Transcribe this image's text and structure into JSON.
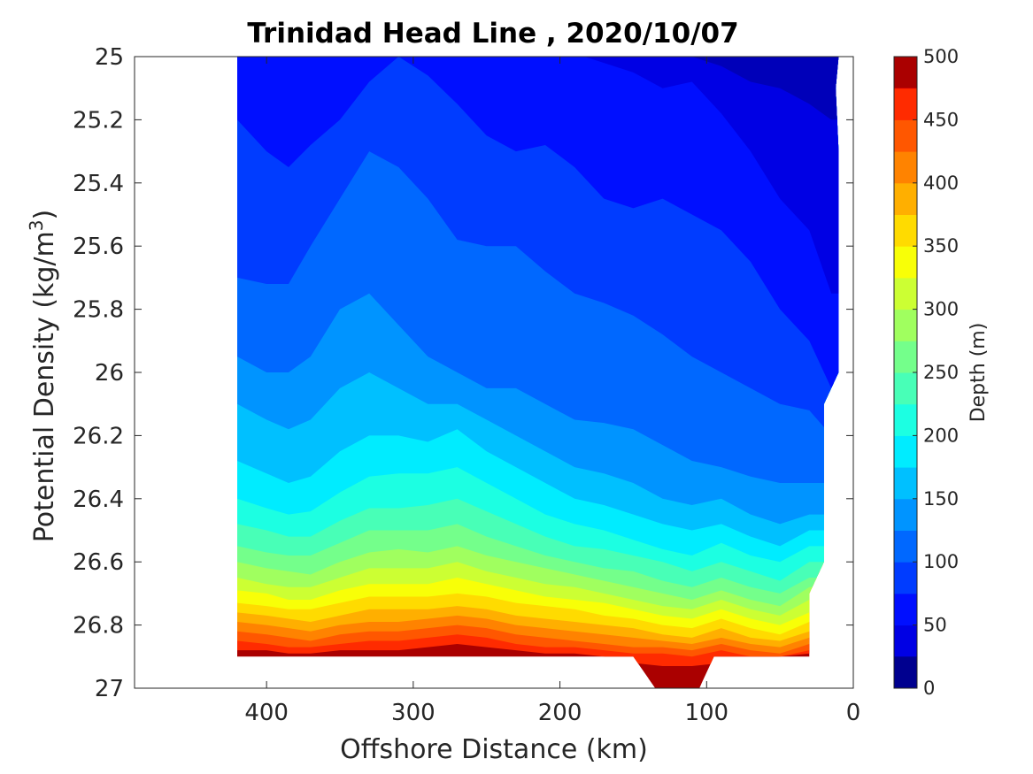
{
  "chart_data": {
    "type": "contour",
    "title": "Trinidad Head Line , 2020/10/07",
    "xlabel": "Offshore Distance (km)",
    "ylabel_main": "Potential Density (kg/m",
    "ylabel_sup": "3",
    "ylabel_close": ")",
    "xlim": [
      490,
      0
    ],
    "ylim": [
      25,
      27
    ],
    "y_reversed": true,
    "x_reversed": true,
    "x_ticks": [
      400,
      300,
      200,
      100,
      0
    ],
    "x_tick_labels": [
      "400",
      "300",
      "200",
      "100",
      "0"
    ],
    "y_ticks": [
      25,
      25.2,
      25.4,
      25.6,
      25.8,
      26,
      26.2,
      26.4,
      26.6,
      26.8,
      27
    ],
    "y_tick_labels": [
      "25",
      "25.2",
      "25.4",
      "25.6",
      "25.8",
      "26",
      "26.2",
      "26.4",
      "26.6",
      "26.8",
      "27"
    ],
    "colorbar": {
      "label": "Depth (m)",
      "range": [
        0,
        500
      ],
      "ticks": [
        0,
        50,
        100,
        150,
        200,
        250,
        300,
        350,
        400,
        450,
        500
      ],
      "tick_labels": [
        "0",
        "50",
        "100",
        "150",
        "200",
        "250",
        "300",
        "350",
        "400",
        "450",
        "500"
      ],
      "levels": [
        0,
        25,
        50,
        75,
        100,
        125,
        150,
        175,
        200,
        225,
        250,
        275,
        300,
        325,
        350,
        375,
        400,
        425,
        450,
        475,
        500
      ]
    },
    "level_colors": [
      "#00008f",
      "#0000b9",
      "#0000e4",
      "#000fff",
      "#003cff",
      "#0068ff",
      "#0094ff",
      "#00c0ff",
      "#00ecff",
      "#1cffe2",
      "#48ffb7",
      "#74ff8b",
      "#a0ff5f",
      "#ccff33",
      "#f8ff07",
      "#ffdb00",
      "#ffaf00",
      "#ff8300",
      "#ff5700",
      "#ff2b00",
      "#ff0000",
      "#d40000",
      "#aa0000"
    ],
    "data_extent": {
      "x_min": 10,
      "x_max": 420,
      "top_boundary": [
        [
          420,
          25
        ],
        [
          10,
          25
        ]
      ],
      "right_boundary": [
        [
          12,
          25.1
        ],
        [
          10,
          25.3
        ],
        [
          10,
          26.0
        ],
        [
          20,
          26.1
        ],
        [
          20,
          26.6
        ],
        [
          30,
          26.7
        ],
        [
          30,
          26.9
        ]
      ],
      "bottom_boundary": [
        [
          420,
          26.9
        ],
        [
          150,
          26.9
        ],
        [
          135,
          27.0
        ],
        [
          105,
          27.0
        ],
        [
          95,
          26.9
        ],
        [
          30,
          26.9
        ]
      ]
    },
    "depth_contours": [
      {
        "level": 25,
        "x": [
          420,
          400,
          385,
          370,
          350,
          330,
          310,
          290,
          270,
          250,
          230,
          210,
          190,
          170,
          150,
          130,
          110,
          90,
          70,
          50,
          30,
          15
        ],
        "y": [
          24.95,
          24.95,
          24.95,
          24.95,
          24.95,
          24.95,
          24.95,
          24.95,
          24.95,
          24.95,
          24.95,
          24.95,
          24.95,
          24.95,
          24.95,
          24.95,
          25.0,
          25.03,
          25.08,
          25.1,
          25.15,
          25.2
        ]
      },
      {
        "level": 50,
        "x": [
          420,
          400,
          385,
          370,
          350,
          330,
          310,
          290,
          270,
          250,
          230,
          210,
          190,
          170,
          150,
          130,
          110,
          90,
          70,
          50,
          30,
          15
        ],
        "y": [
          25.0,
          25.0,
          24.99,
          24.99,
          24.99,
          24.99,
          24.99,
          24.99,
          24.99,
          24.99,
          24.99,
          24.99,
          24.99,
          25.02,
          25.05,
          25.1,
          25.08,
          25.18,
          25.3,
          25.45,
          25.55,
          25.75
        ]
      },
      {
        "level": 75,
        "x": [
          420,
          400,
          385,
          370,
          350,
          330,
          310,
          290,
          270,
          250,
          230,
          210,
          190,
          170,
          150,
          130,
          110,
          90,
          70,
          50,
          30,
          15
        ],
        "y": [
          25.2,
          25.3,
          25.35,
          25.28,
          25.2,
          25.08,
          25.0,
          25.06,
          25.15,
          25.25,
          25.3,
          25.28,
          25.35,
          25.45,
          25.48,
          25.45,
          25.5,
          25.55,
          25.65,
          25.8,
          25.9,
          26.05
        ]
      },
      {
        "level": 100,
        "x": [
          420,
          400,
          385,
          370,
          350,
          330,
          310,
          290,
          270,
          250,
          230,
          210,
          190,
          170,
          150,
          130,
          110,
          90,
          70,
          50,
          30,
          15
        ],
        "y": [
          25.7,
          25.72,
          25.72,
          25.6,
          25.45,
          25.3,
          25.35,
          25.45,
          25.58,
          25.6,
          25.6,
          25.68,
          25.75,
          25.78,
          25.82,
          25.88,
          25.95,
          26.0,
          26.05,
          26.1,
          26.12,
          26.2
        ]
      },
      {
        "level": 125,
        "x": [
          420,
          400,
          385,
          370,
          350,
          330,
          310,
          290,
          270,
          250,
          230,
          210,
          190,
          170,
          150,
          130,
          110,
          90,
          70,
          50,
          30,
          20
        ],
        "y": [
          25.95,
          26.0,
          26.0,
          25.95,
          25.8,
          25.75,
          25.85,
          25.95,
          26.0,
          26.05,
          26.05,
          26.1,
          26.15,
          26.16,
          26.18,
          26.23,
          26.28,
          26.3,
          26.33,
          26.35,
          26.35,
          26.35
        ]
      },
      {
        "level": 150,
        "x": [
          420,
          400,
          385,
          370,
          350,
          330,
          310,
          290,
          270,
          250,
          230,
          210,
          190,
          170,
          150,
          130,
          110,
          90,
          70,
          50,
          30,
          20
        ],
        "y": [
          26.1,
          26.15,
          26.18,
          26.15,
          26.05,
          26.0,
          26.05,
          26.1,
          26.1,
          26.15,
          26.2,
          26.25,
          26.3,
          26.32,
          26.35,
          26.4,
          26.42,
          26.4,
          26.45,
          26.48,
          26.45,
          26.45
        ]
      },
      {
        "level": 175,
        "x": [
          420,
          400,
          385,
          370,
          350,
          330,
          310,
          290,
          270,
          250,
          230,
          210,
          190,
          170,
          150,
          130,
          110,
          90,
          70,
          50,
          30,
          20
        ],
        "y": [
          26.28,
          26.32,
          26.35,
          26.33,
          26.25,
          26.2,
          26.2,
          26.22,
          26.18,
          26.25,
          26.3,
          26.35,
          26.4,
          26.42,
          26.45,
          26.48,
          26.5,
          26.48,
          26.52,
          26.55,
          26.5,
          26.5
        ]
      },
      {
        "level": 200,
        "x": [
          420,
          400,
          385,
          370,
          350,
          330,
          310,
          290,
          270,
          250,
          230,
          210,
          190,
          170,
          150,
          130,
          110,
          90,
          70,
          50,
          30,
          20
        ],
        "y": [
          26.4,
          26.43,
          26.45,
          26.44,
          26.38,
          26.33,
          26.32,
          26.32,
          26.3,
          26.35,
          26.4,
          26.45,
          26.48,
          26.5,
          26.53,
          26.56,
          26.58,
          26.54,
          26.58,
          26.6,
          26.55,
          26.55
        ]
      },
      {
        "level": 225,
        "x": [
          420,
          400,
          385,
          370,
          350,
          330,
          310,
          290,
          270,
          250,
          230,
          210,
          190,
          170,
          150,
          130,
          110,
          90,
          70,
          50,
          30,
          20
        ],
        "y": [
          26.48,
          26.5,
          26.52,
          26.52,
          26.47,
          26.43,
          26.43,
          26.42,
          26.4,
          26.44,
          26.48,
          26.52,
          26.55,
          26.56,
          26.58,
          26.6,
          26.63,
          26.6,
          26.63,
          26.66,
          26.6,
          26.6
        ]
      },
      {
        "level": 250,
        "x": [
          420,
          400,
          385,
          370,
          350,
          330,
          310,
          290,
          270,
          250,
          230,
          210,
          190,
          170,
          150,
          130,
          110,
          90,
          70,
          50,
          30,
          20
        ],
        "y": [
          26.55,
          26.57,
          26.58,
          26.58,
          26.54,
          26.5,
          26.5,
          26.5,
          26.48,
          26.52,
          26.55,
          26.58,
          26.6,
          26.62,
          26.63,
          26.66,
          26.68,
          26.65,
          26.68,
          26.7,
          26.65,
          26.65
        ]
      },
      {
        "level": 275,
        "x": [
          420,
          400,
          385,
          370,
          350,
          330,
          310,
          290,
          270,
          250,
          230,
          210,
          190,
          170,
          150,
          130,
          110,
          90,
          70,
          50,
          30,
          20
        ],
        "y": [
          26.6,
          26.62,
          26.63,
          26.64,
          26.6,
          26.57,
          26.56,
          26.57,
          26.55,
          26.58,
          26.6,
          26.62,
          26.64,
          26.66,
          26.68,
          26.7,
          26.72,
          26.69,
          26.72,
          26.74,
          26.68,
          26.68
        ]
      },
      {
        "level": 300,
        "x": [
          420,
          400,
          385,
          370,
          350,
          330,
          310,
          290,
          270,
          250,
          230,
          210,
          190,
          170,
          150,
          130,
          110,
          90,
          70,
          50,
          30,
          20
        ],
        "y": [
          26.65,
          26.67,
          26.68,
          26.68,
          26.65,
          26.62,
          26.62,
          26.62,
          26.6,
          26.63,
          26.65,
          26.67,
          26.68,
          26.7,
          26.72,
          26.74,
          26.75,
          26.72,
          26.75,
          26.77,
          26.72,
          26.72
        ]
      },
      {
        "level": 325,
        "x": [
          420,
          400,
          385,
          370,
          350,
          330,
          310,
          290,
          270,
          250,
          230,
          210,
          190,
          170,
          150,
          130,
          110,
          90,
          70,
          50,
          30
        ],
        "y": [
          26.69,
          26.7,
          26.72,
          26.72,
          26.69,
          26.67,
          26.67,
          26.67,
          26.65,
          26.67,
          26.69,
          26.71,
          26.72,
          26.73,
          26.75,
          26.77,
          26.78,
          26.75,
          26.78,
          26.8,
          26.76
        ]
      },
      {
        "level": 350,
        "x": [
          420,
          400,
          385,
          370,
          350,
          330,
          310,
          290,
          270,
          250,
          230,
          210,
          190,
          170,
          150,
          130,
          110,
          90,
          70,
          50,
          30
        ],
        "y": [
          26.73,
          26.74,
          26.75,
          26.75,
          26.73,
          26.71,
          26.71,
          26.71,
          26.7,
          26.71,
          26.73,
          26.74,
          26.75,
          26.77,
          26.78,
          26.8,
          26.81,
          26.78,
          26.81,
          26.83,
          26.79
        ]
      },
      {
        "level": 375,
        "x": [
          420,
          400,
          385,
          370,
          350,
          330,
          310,
          290,
          270,
          250,
          230,
          210,
          190,
          170,
          150,
          130,
          110,
          90,
          70,
          50,
          30
        ],
        "y": [
          26.76,
          26.77,
          26.78,
          26.79,
          26.77,
          26.75,
          26.75,
          26.75,
          26.74,
          26.75,
          26.77,
          26.78,
          26.79,
          26.8,
          26.81,
          26.83,
          26.84,
          26.81,
          26.84,
          26.85,
          26.82
        ]
      },
      {
        "level": 400,
        "x": [
          420,
          400,
          385,
          370,
          350,
          330,
          310,
          290,
          270,
          250,
          230,
          210,
          190,
          170,
          150,
          130,
          110,
          90,
          70,
          50,
          30
        ],
        "y": [
          26.79,
          26.8,
          26.81,
          26.82,
          26.8,
          26.79,
          26.79,
          26.78,
          26.77,
          26.78,
          26.8,
          26.81,
          26.82,
          26.83,
          26.84,
          26.85,
          26.86,
          26.84,
          26.86,
          26.87,
          26.84
        ]
      },
      {
        "level": 425,
        "x": [
          420,
          400,
          385,
          370,
          350,
          330,
          310,
          290,
          270,
          250,
          230,
          210,
          190,
          170,
          150,
          130,
          110,
          90,
          70,
          50,
          30
        ],
        "y": [
          26.82,
          26.83,
          26.84,
          26.85,
          26.83,
          26.82,
          26.82,
          26.81,
          26.8,
          26.81,
          26.83,
          26.84,
          26.85,
          26.86,
          26.87,
          26.87,
          26.88,
          26.86,
          26.88,
          26.89,
          26.86
        ]
      },
      {
        "level": 450,
        "x": [
          420,
          400,
          385,
          370,
          350,
          330,
          310,
          290,
          270,
          250,
          230,
          210,
          190,
          170,
          150,
          130,
          110,
          90,
          70,
          50,
          30
        ],
        "y": [
          26.85,
          26.86,
          26.87,
          26.87,
          26.86,
          26.85,
          26.85,
          26.84,
          26.83,
          26.84,
          26.86,
          26.87,
          26.87,
          26.88,
          26.89,
          26.89,
          26.9,
          26.88,
          26.9,
          26.9,
          26.88
        ]
      },
      {
        "level": 475,
        "x": [
          420,
          400,
          385,
          370,
          350,
          330,
          310,
          290,
          270,
          250,
          230,
          210,
          190,
          170,
          150,
          130,
          110,
          90,
          70,
          50,
          30
        ],
        "y": [
          26.88,
          26.88,
          26.89,
          26.89,
          26.88,
          26.88,
          26.88,
          26.87,
          26.86,
          26.87,
          26.88,
          26.89,
          26.89,
          26.9,
          26.92,
          26.93,
          26.93,
          26.92,
          26.91,
          26.9,
          26.89
        ]
      },
      {
        "level": 500,
        "x": [
          150,
          140,
          130,
          120,
          110,
          100
        ],
        "y": [
          27.0,
          26.97,
          26.95,
          26.95,
          26.96,
          27.0
        ]
      }
    ]
  }
}
